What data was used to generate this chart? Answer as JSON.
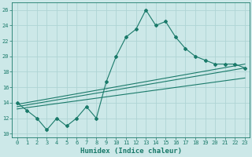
{
  "xlabel": "Humidex (Indice chaleur)",
  "ylabel": "",
  "background_color": "#cce8e8",
  "grid_color": "#afd4d4",
  "line_color": "#1a7a6a",
  "xlim": [
    -0.5,
    23.5
  ],
  "ylim": [
    9.5,
    27
  ],
  "xticks": [
    0,
    1,
    2,
    3,
    4,
    5,
    6,
    7,
    8,
    9,
    10,
    11,
    12,
    13,
    14,
    15,
    16,
    17,
    18,
    19,
    20,
    21,
    22,
    23
  ],
  "yticks": [
    10,
    12,
    14,
    16,
    18,
    20,
    22,
    24,
    26
  ],
  "main_line_x": [
    0,
    1,
    2,
    3,
    4,
    5,
    6,
    7,
    8,
    9,
    10,
    11,
    12,
    13,
    14,
    15,
    16,
    17,
    18,
    19,
    20,
    21,
    22,
    23
  ],
  "main_line_y": [
    14,
    13,
    12,
    10.5,
    12,
    11,
    12,
    13.5,
    12,
    16.7,
    20,
    22.5,
    23.5,
    26,
    24,
    24.5,
    22.5,
    21,
    20,
    19.5,
    19,
    19,
    19,
    18.5
  ],
  "line2_x": [
    0,
    23
  ],
  "line2_y": [
    13.8,
    19.0
  ],
  "line3_x": [
    0,
    23
  ],
  "line3_y": [
    13.5,
    18.5
  ],
  "line4_x": [
    0,
    23
  ],
  "line4_y": [
    13.2,
    17.2
  ]
}
